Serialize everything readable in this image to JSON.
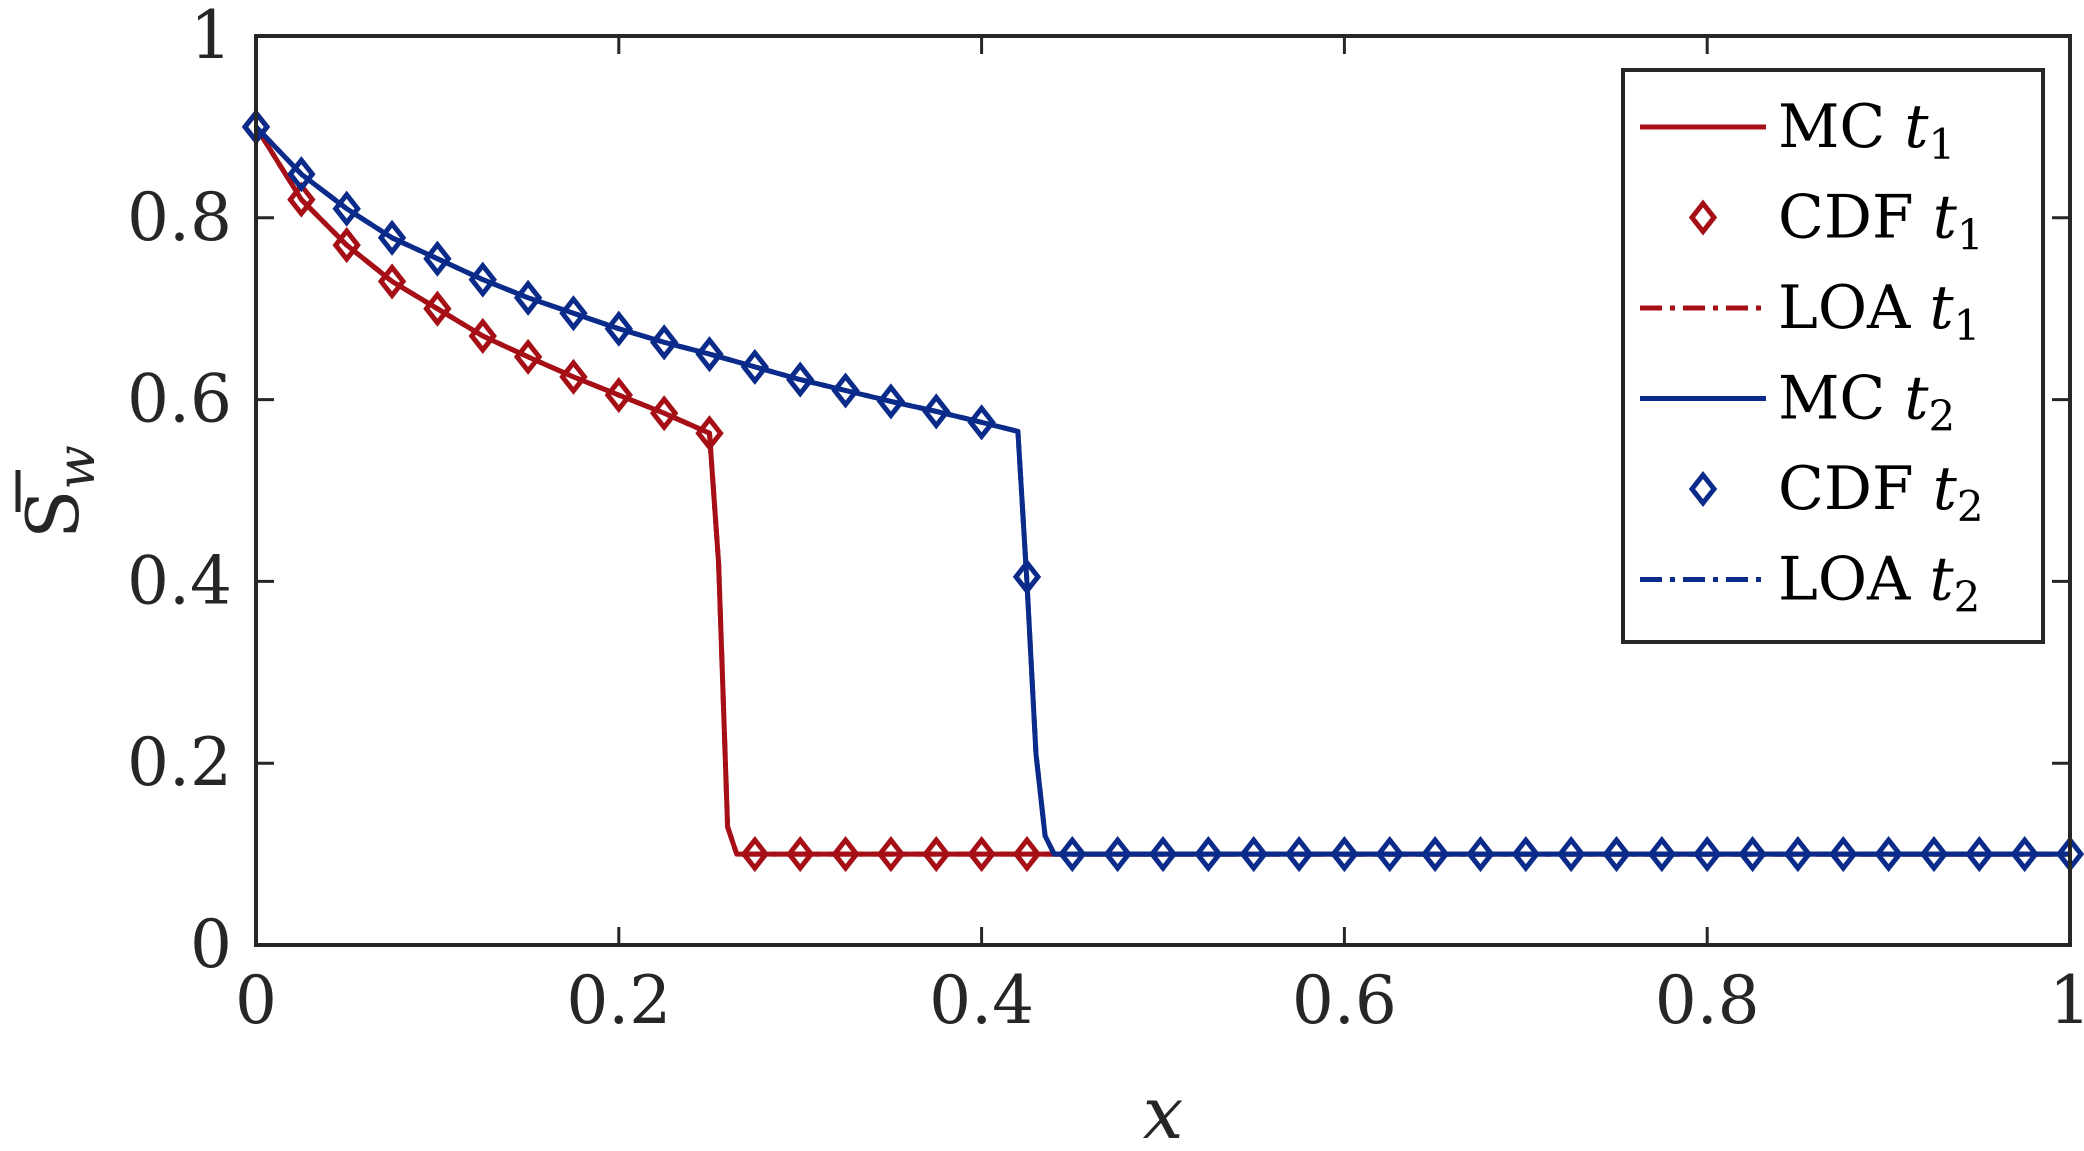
{
  "chart_data": {
    "type": "line",
    "xlabel": "x",
    "ylabel": "S̄w",
    "ylabel_base": "S",
    "ylabel_sub": "w",
    "xlim": [
      0,
      1
    ],
    "ylim": [
      0,
      1
    ],
    "x_ticks": [
      0,
      0.2,
      0.4,
      0.6,
      0.8,
      1
    ],
    "y_ticks": [
      0,
      0.2,
      0.4,
      0.6,
      0.8,
      1
    ],
    "x_tick_labels": [
      "0",
      "0.2",
      "0.4",
      "0.6",
      "0.8",
      "1"
    ],
    "y_tick_labels": [
      "0",
      "0.2",
      "0.4",
      "0.6",
      "0.8",
      "1"
    ],
    "grid": false,
    "legend_position": "top-right",
    "colors": {
      "t1": "#a50f15",
      "t2": "#0b2b8a",
      "axis": "#262626"
    },
    "series": [
      {
        "name": "MC t1",
        "label_main": "MC ",
        "label_t": "t",
        "label_sub": "1",
        "style": "solid",
        "color": "t1",
        "x": [
          0,
          0.025,
          0.05,
          0.075,
          0.1,
          0.125,
          0.15,
          0.175,
          0.2,
          0.225,
          0.25,
          0.255,
          0.26,
          0.265,
          0.275,
          1.0
        ],
        "y": [
          0.9,
          0.82,
          0.77,
          0.73,
          0.7,
          0.67,
          0.647,
          0.625,
          0.605,
          0.585,
          0.563,
          0.42,
          0.13,
          0.1,
          0.1,
          0.1
        ]
      },
      {
        "name": "CDF t1",
        "label_main": "CDF ",
        "label_t": "t",
        "label_sub": "1",
        "style": "markers",
        "color": "t1",
        "x": [
          0,
          0.025,
          0.05,
          0.075,
          0.1,
          0.125,
          0.15,
          0.175,
          0.2,
          0.225,
          0.25,
          0.275,
          0.3,
          0.325,
          0.35,
          0.375,
          0.4,
          0.425
        ],
        "y": [
          0.9,
          0.82,
          0.77,
          0.73,
          0.7,
          0.67,
          0.647,
          0.625,
          0.605,
          0.585,
          0.563,
          0.1,
          0.1,
          0.1,
          0.1,
          0.1,
          0.1,
          0.1
        ]
      },
      {
        "name": "LOA t1",
        "label_main": "LOA ",
        "label_t": "t",
        "label_sub": "1",
        "style": "dashdot",
        "color": "t1",
        "x": [
          0,
          0.025,
          0.05,
          0.075,
          0.1,
          0.125,
          0.15,
          0.175,
          0.2,
          0.225,
          0.25,
          0.255,
          0.26,
          0.265,
          0.275,
          1.0
        ],
        "y": [
          0.9,
          0.82,
          0.77,
          0.73,
          0.7,
          0.67,
          0.647,
          0.625,
          0.605,
          0.585,
          0.563,
          0.42,
          0.13,
          0.1,
          0.1,
          0.1
        ]
      },
      {
        "name": "MC t2",
        "label_main": "MC ",
        "label_t": "t",
        "label_sub": "2",
        "style": "solid",
        "color": "t2",
        "x": [
          0,
          0.025,
          0.05,
          0.075,
          0.1,
          0.125,
          0.15,
          0.175,
          0.2,
          0.225,
          0.25,
          0.275,
          0.3,
          0.325,
          0.35,
          0.375,
          0.4,
          0.42,
          0.425,
          0.43,
          0.435,
          0.44,
          0.45,
          1.0
        ],
        "y": [
          0.9,
          0.848,
          0.81,
          0.778,
          0.755,
          0.732,
          0.712,
          0.695,
          0.678,
          0.663,
          0.65,
          0.636,
          0.622,
          0.61,
          0.598,
          0.587,
          0.575,
          0.565,
          0.4,
          0.21,
          0.12,
          0.1,
          0.1,
          0.1
        ]
      },
      {
        "name": "CDF t2",
        "label_main": "CDF ",
        "label_t": "t",
        "label_sub": "2",
        "style": "markers",
        "color": "t2",
        "x": [
          0,
          0.025,
          0.05,
          0.075,
          0.1,
          0.125,
          0.15,
          0.175,
          0.2,
          0.225,
          0.25,
          0.275,
          0.3,
          0.325,
          0.35,
          0.375,
          0.4,
          0.425,
          0.45,
          0.475,
          0.5,
          0.525,
          0.55,
          0.575,
          0.6,
          0.625,
          0.65,
          0.675,
          0.7,
          0.725,
          0.75,
          0.775,
          0.8,
          0.825,
          0.85,
          0.875,
          0.9,
          0.925,
          0.95,
          0.975,
          1.0
        ],
        "y": [
          0.9,
          0.848,
          0.81,
          0.778,
          0.755,
          0.732,
          0.712,
          0.695,
          0.678,
          0.663,
          0.65,
          0.636,
          0.622,
          0.61,
          0.598,
          0.587,
          0.575,
          0.405,
          0.1,
          0.1,
          0.1,
          0.1,
          0.1,
          0.1,
          0.1,
          0.1,
          0.1,
          0.1,
          0.1,
          0.1,
          0.1,
          0.1,
          0.1,
          0.1,
          0.1,
          0.1,
          0.1,
          0.1,
          0.1,
          0.1,
          0.1
        ]
      },
      {
        "name": "LOA t2",
        "label_main": "LOA ",
        "label_t": "t",
        "label_sub": "2",
        "style": "dashdot",
        "color": "t2",
        "x": [
          0,
          0.025,
          0.05,
          0.075,
          0.1,
          0.125,
          0.15,
          0.175,
          0.2,
          0.225,
          0.25,
          0.275,
          0.3,
          0.325,
          0.35,
          0.375,
          0.4,
          0.42,
          0.425,
          0.43,
          0.435,
          0.44,
          0.45,
          1.0
        ],
        "y": [
          0.9,
          0.848,
          0.81,
          0.778,
          0.755,
          0.732,
          0.712,
          0.695,
          0.678,
          0.663,
          0.65,
          0.636,
          0.622,
          0.61,
          0.598,
          0.587,
          0.575,
          0.565,
          0.4,
          0.21,
          0.12,
          0.1,
          0.1,
          0.1
        ]
      }
    ]
  }
}
